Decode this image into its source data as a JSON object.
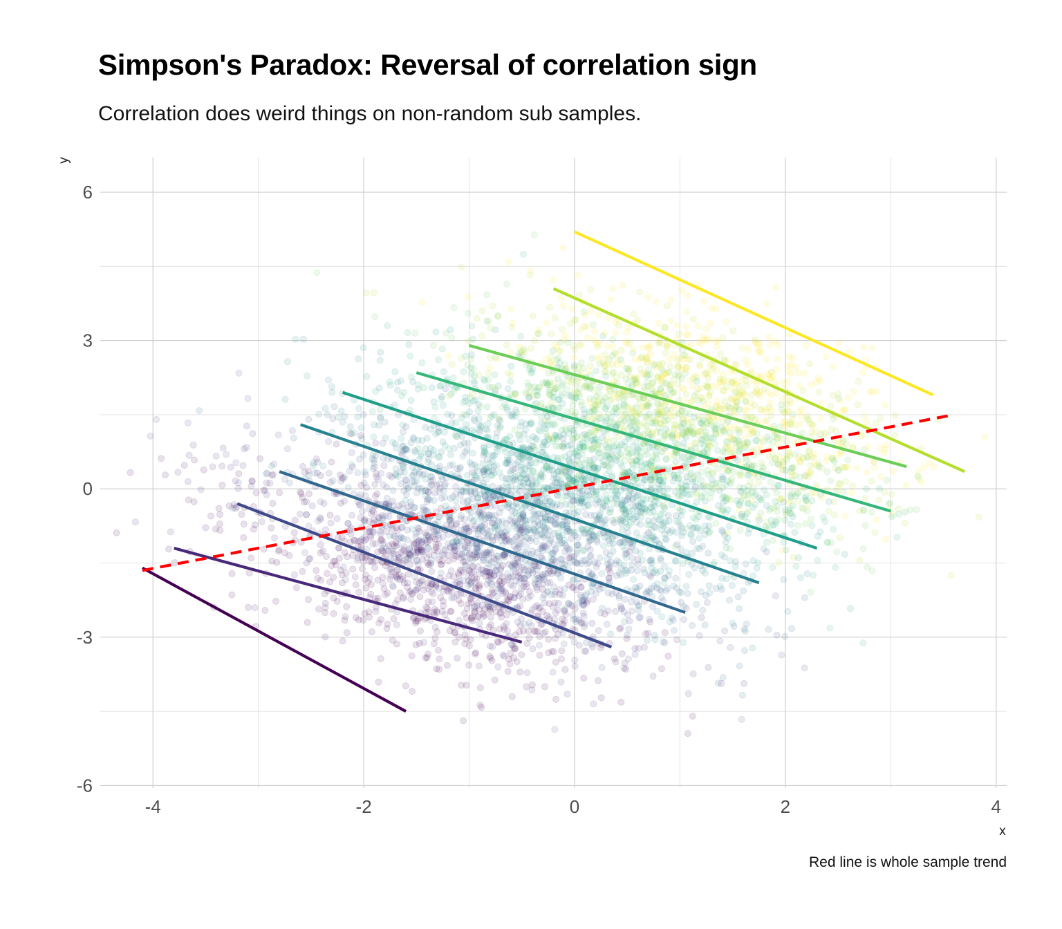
{
  "chart_data": {
    "type": "scatter",
    "title": "Simpson's Paradox: Reversal of correlation sign",
    "subtitle": "Correlation does weird things on non-random sub samples.",
    "caption": "Red line is whole sample trend",
    "xlabel": "x",
    "ylabel": "y",
    "xlim": [
      -4.5,
      4.1
    ],
    "ylim": [
      -6.05,
      6.7
    ],
    "xticks": [
      -4,
      -2,
      0,
      2,
      4
    ],
    "yticks": [
      -6,
      -3,
      0,
      3,
      6
    ],
    "grid": true,
    "colormap": "viridis",
    "point_cloud": {
      "approx_count": 5000,
      "opacity": 0.12,
      "description_center": [
        0.0,
        0.0
      ]
    },
    "group_lines": [
      {
        "color": "#440154",
        "x": [
          -4.1,
          -1.6
        ],
        "y": [
          -1.6,
          -4.5
        ]
      },
      {
        "color": "#482878",
        "x": [
          -3.8,
          -0.5
        ],
        "y": [
          -1.2,
          -3.1
        ]
      },
      {
        "color": "#3E4A89",
        "x": [
          -3.2,
          0.35
        ],
        "y": [
          -0.3,
          -3.2
        ]
      },
      {
        "color": "#31688E",
        "x": [
          -2.8,
          1.05
        ],
        "y": [
          0.35,
          -2.5
        ]
      },
      {
        "color": "#26828E",
        "x": [
          -2.6,
          1.75
        ],
        "y": [
          1.3,
          -1.9
        ]
      },
      {
        "color": "#1F9E89",
        "x": [
          -2.2,
          2.3
        ],
        "y": [
          1.95,
          -1.2
        ]
      },
      {
        "color": "#35B779",
        "x": [
          -1.5,
          3.0
        ],
        "y": [
          2.35,
          -0.45
        ]
      },
      {
        "color": "#6DCD59",
        "x": [
          -1.0,
          3.15
        ],
        "y": [
          2.9,
          0.45
        ]
      },
      {
        "color": "#B4DE2C",
        "x": [
          -0.2,
          3.7
        ],
        "y": [
          4.05,
          0.35
        ]
      },
      {
        "color": "#FDE725",
        "x": [
          0.0,
          3.4
        ],
        "y": [
          5.2,
          1.9
        ]
      }
    ],
    "whole_sample_trend": {
      "color": "#FF0000",
      "style": "dashed",
      "x": [
        -4.1,
        3.6
      ],
      "y": [
        -1.65,
        1.5
      ]
    }
  }
}
